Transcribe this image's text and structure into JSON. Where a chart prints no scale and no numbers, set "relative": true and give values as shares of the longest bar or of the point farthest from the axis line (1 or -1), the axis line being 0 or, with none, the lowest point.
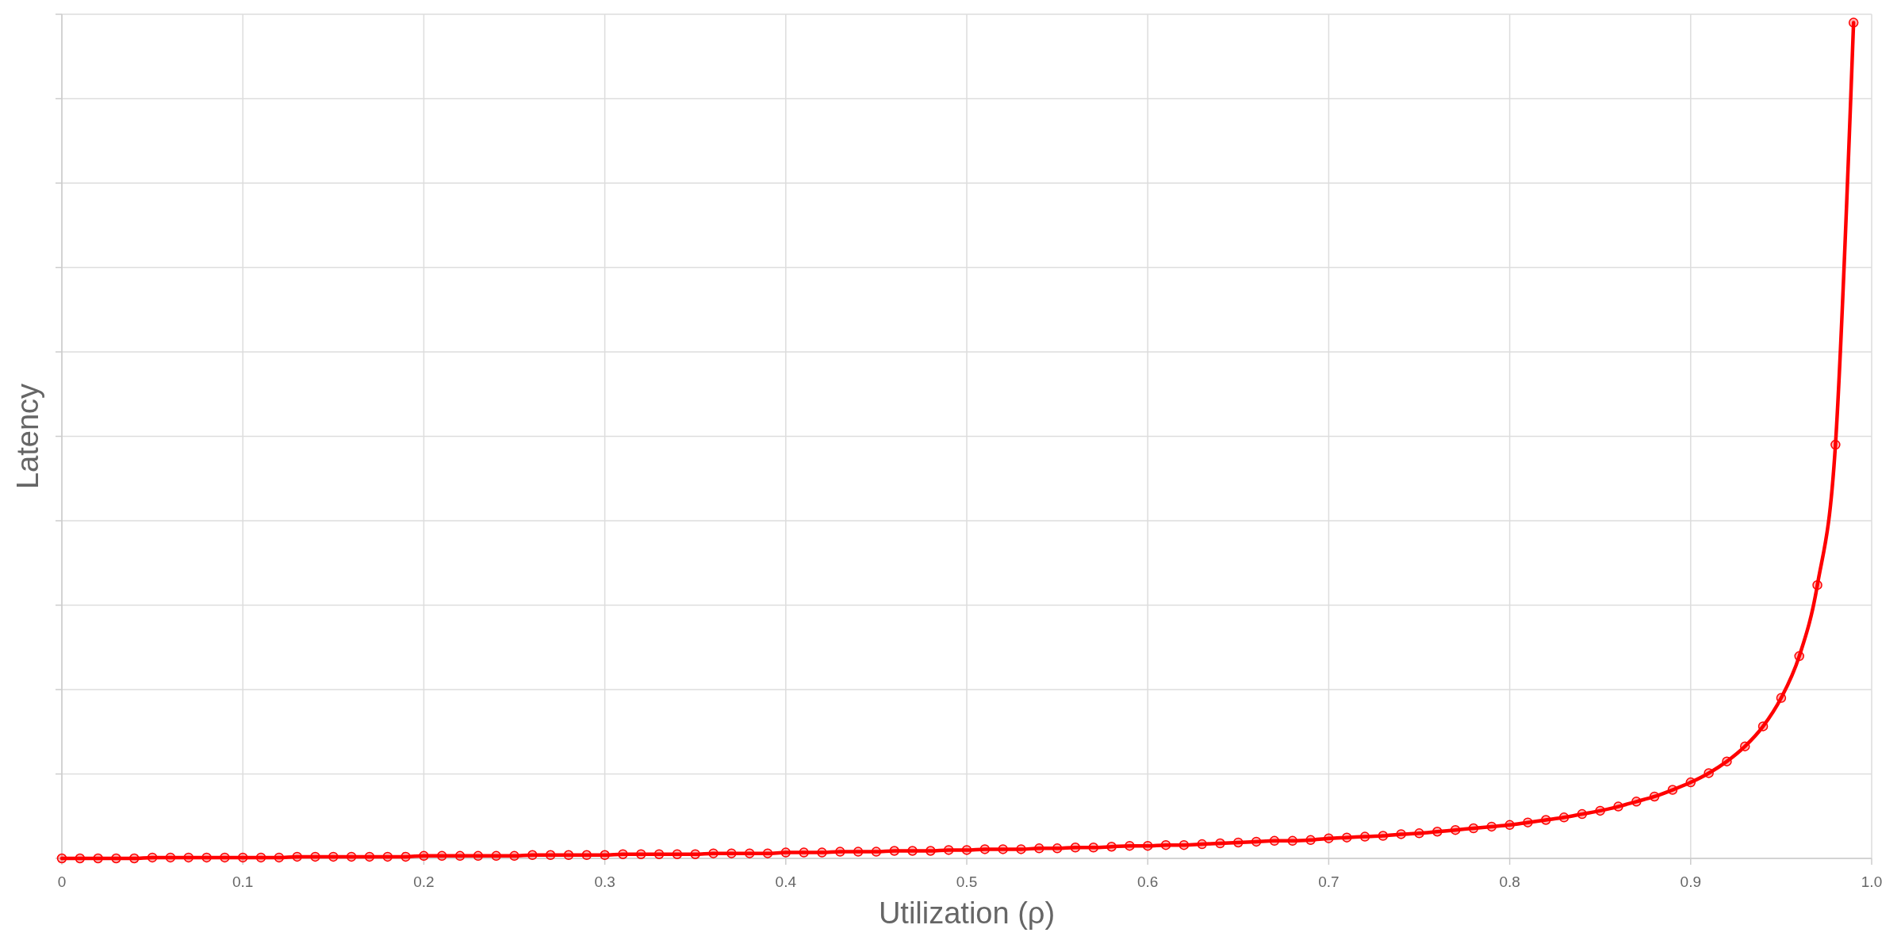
{
  "chart_data": {
    "type": "line",
    "relative": true,
    "xlabel": "Utilization (ρ)",
    "ylabel": "Latency",
    "xlim": [
      0,
      1
    ],
    "xticks": [
      0,
      0.1,
      0.2,
      0.3,
      0.4,
      0.5,
      0.6,
      0.7,
      0.8,
      0.9,
      {
        "value": 1,
        "label": "1.0"
      }
    ],
    "tick_labels": "x",
    "grid": true,
    "marker": "circle",
    "line_style": "solid",
    "x": [
      0,
      0.01,
      0.02,
      0.03,
      0.04,
      0.05,
      0.06,
      0.07,
      0.08,
      0.09,
      0.1,
      0.11,
      0.12,
      0.13,
      0.14,
      0.15,
      0.16,
      0.17,
      0.18,
      0.19,
      0.2,
      0.21,
      0.22,
      0.23,
      0.24,
      0.25,
      0.26,
      0.27,
      0.28,
      0.29,
      0.3,
      0.31,
      0.32,
      0.33,
      0.34,
      0.35,
      0.36,
      0.37,
      0.38,
      0.39,
      0.4,
      0.41,
      0.42,
      0.43,
      0.44,
      0.45,
      0.46,
      0.47,
      0.48,
      0.49,
      0.5,
      0.51,
      0.52,
      0.53,
      0.54,
      0.55,
      0.56,
      0.57,
      0.58,
      0.59,
      0.6,
      0.61,
      0.62,
      0.63,
      0.64,
      0.65,
      0.66,
      0.67,
      0.68,
      0.69,
      0.7,
      0.71,
      0.72,
      0.73,
      0.74,
      0.75,
      0.76,
      0.77,
      0.78,
      0.79,
      0.8,
      0.81,
      0.82,
      0.83,
      0.84,
      0.85,
      0.86,
      0.87,
      0.88,
      0.89,
      0.9,
      0.91,
      0.92,
      0.93,
      0.94,
      0.95,
      0.96,
      0.97,
      0.98,
      0.99
    ],
    "series": [
      {
        "color": "#ff0000",
        "values": [
          0,
          0,
          0,
          0,
          0,
          0.001,
          0.001,
          0.001,
          0.001,
          0.001,
          0.001,
          0.001,
          0.001,
          0.002,
          0.002,
          0.002,
          0.002,
          0.002,
          0.002,
          0.002,
          0.003,
          0.003,
          0.003,
          0.003,
          0.003,
          0.003,
          0.004,
          0.004,
          0.004,
          0.004,
          0.004,
          0.005,
          0.005,
          0.005,
          0.005,
          0.005,
          0.006,
          0.006,
          0.006,
          0.006,
          0.007,
          0.007,
          0.007,
          0.008,
          0.008,
          0.008,
          0.009,
          0.009,
          0.009,
          0.01,
          0.01,
          0.011,
          0.011,
          0.011,
          0.012,
          0.012,
          0.013,
          0.013,
          0.014,
          0.015,
          0.015,
          0.016,
          0.016,
          0.017,
          0.018,
          0.019,
          0.02,
          0.021,
          0.021,
          0.022,
          0.024,
          0.025,
          0.026,
          0.027,
          0.029,
          0.03,
          0.032,
          0.034,
          0.036,
          0.038,
          0.04,
          0.043,
          0.046,
          0.049,
          0.053,
          0.057,
          0.062,
          0.068,
          0.074,
          0.082,
          0.091,
          0.102,
          0.116,
          0.134,
          0.158,
          0.192,
          0.242,
          0.327,
          0.495,
          1
        ]
      }
    ]
  }
}
